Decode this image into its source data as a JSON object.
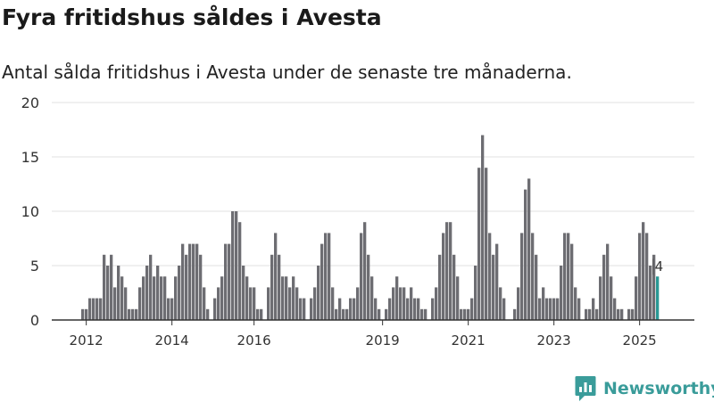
{
  "title": "Fyra fritidshus såldes i Avesta",
  "subtitle": "Antal sålda fritidshus i Avesta under de senaste tre månaderna.",
  "brand": {
    "name": "Newsworthy",
    "icon": "bar-chart-logo-icon"
  },
  "colors": {
    "bar": "#6d6d72",
    "highlight": "#2a9995",
    "brand": "#3a9c9a",
    "grid": "#e2e2e2"
  },
  "chart_data": {
    "type": "bar",
    "title": "Fyra fritidshus såldes i Avesta",
    "subtitle": "Antal sålda fritidshus i Avesta under de senaste tre månaderna.",
    "xlabel": "",
    "ylabel": "",
    "ylim": [
      0,
      20
    ],
    "yticks": [
      "0",
      "5",
      "10",
      "15",
      "20"
    ],
    "xticks": [
      {
        "label": "2012",
        "index": 1
      },
      {
        "label": "2014",
        "index": 25
      },
      {
        "label": "2016",
        "index": 48
      },
      {
        "label": "2019",
        "index": 84
      },
      {
        "label": "2021",
        "index": 108
      },
      {
        "label": "2023",
        "index": 132
      },
      {
        "label": "2025",
        "index": 156
      }
    ],
    "values": [
      1,
      1,
      2,
      2,
      2,
      2,
      6,
      5,
      6,
      3,
      5,
      4,
      3,
      1,
      1,
      1,
      3,
      4,
      5,
      6,
      4,
      5,
      4,
      4,
      2,
      2,
      4,
      5,
      7,
      6,
      7,
      7,
      7,
      6,
      3,
      1,
      0,
      2,
      3,
      4,
      7,
      7,
      10,
      10,
      9,
      5,
      4,
      3,
      3,
      1,
      1,
      0,
      3,
      6,
      8,
      6,
      4,
      4,
      3,
      4,
      3,
      2,
      2,
      0,
      2,
      3,
      5,
      7,
      8,
      8,
      3,
      1,
      2,
      1,
      1,
      2,
      2,
      3,
      8,
      9,
      6,
      4,
      2,
      1,
      0,
      1,
      2,
      3,
      4,
      3,
      3,
      2,
      3,
      2,
      2,
      1,
      1,
      0,
      2,
      3,
      6,
      8,
      9,
      9,
      6,
      4,
      1,
      1,
      1,
      2,
      5,
      14,
      17,
      14,
      8,
      6,
      7,
      3,
      2,
      0,
      0,
      1,
      3,
      8,
      12,
      13,
      8,
      6,
      2,
      3,
      2,
      2,
      2,
      2,
      5,
      8,
      8,
      7,
      3,
      2,
      0,
      1,
      1,
      2,
      1,
      4,
      6,
      7,
      4,
      2,
      1,
      1,
      0,
      1,
      1,
      4,
      8,
      9,
      8,
      5,
      6,
      4
    ],
    "highlight_last": true,
    "last_value_label": "4"
  }
}
